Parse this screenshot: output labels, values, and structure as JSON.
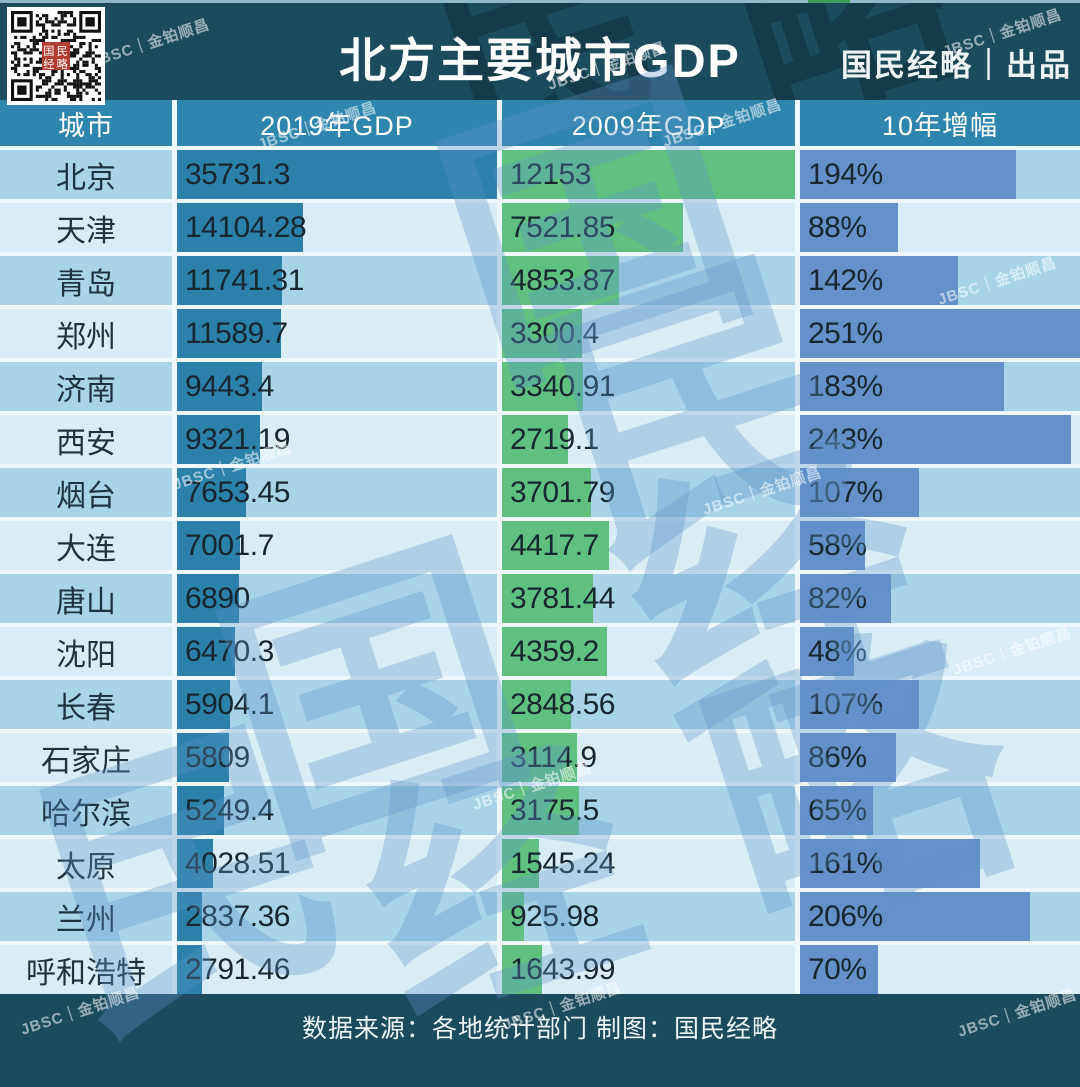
{
  "page": {
    "title": "北方主要城市GDP",
    "byline": "国民经略｜出品",
    "footer": "数据来源：各地统计部门  制图：国民经略"
  },
  "watermarks": {
    "jbsc": "JBSC｜金铂顺昌",
    "chars": [
      "国",
      "民",
      "经",
      "略"
    ],
    "qr_seal": "国民经略"
  },
  "colors": {
    "page_bg": "#1d4b5e",
    "header_bg": "#2e85ae",
    "row_odd": "#a9d4e8",
    "row_even": "#d9edf6",
    "separator": "#eef7fb",
    "bars": {
      "gdp2019": "#2b81aa",
      "gdp2009": "#5fc080",
      "growth": "#6590c9"
    },
    "seal_red": "#b23b32"
  },
  "chart_data": {
    "type": "table",
    "title": "北方主要城市GDP",
    "columns": [
      "城市",
      "2019年GDP",
      "2009年GDP",
      "10年增幅"
    ],
    "bar_note": "每个数值单元格内有与数值成比例的条形，列最大值占满整列宽度",
    "col_max": {
      "gdp2019": 35731.3,
      "gdp2009": 12153,
      "growth": 251
    },
    "rows": [
      {
        "city": "北京",
        "gdp2019": "35731.3",
        "gdp2009": "12153",
        "growth": "194%"
      },
      {
        "city": "天津",
        "gdp2019": "14104.28",
        "gdp2009": "7521.85",
        "growth": "88%"
      },
      {
        "city": "青岛",
        "gdp2019": "11741.31",
        "gdp2009": "4853.87",
        "growth": "142%"
      },
      {
        "city": "郑州",
        "gdp2019": "11589.7",
        "gdp2009": "3300.4",
        "growth": "251%"
      },
      {
        "city": "济南",
        "gdp2019": "9443.4",
        "gdp2009": "3340.91",
        "growth": "183%"
      },
      {
        "city": "西安",
        "gdp2019": "9321.19",
        "gdp2009": "2719.1",
        "growth": "243%"
      },
      {
        "city": "烟台",
        "gdp2019": "7653.45",
        "gdp2009": "3701.79",
        "growth": "107%"
      },
      {
        "city": "大连",
        "gdp2019": "7001.7",
        "gdp2009": "4417.7",
        "growth": "58%"
      },
      {
        "city": "唐山",
        "gdp2019": "6890",
        "gdp2009": "3781.44",
        "growth": "82%"
      },
      {
        "city": "沈阳",
        "gdp2019": "6470.3",
        "gdp2009": "4359.2",
        "growth": "48%"
      },
      {
        "city": "长春",
        "gdp2019": "5904.1",
        "gdp2009": "2848.56",
        "growth": "107%"
      },
      {
        "city": "石家庄",
        "gdp2019": "5809",
        "gdp2009": "3114.9",
        "growth": "86%"
      },
      {
        "city": "哈尔滨",
        "gdp2019": "5249.4",
        "gdp2009": "3175.5",
        "growth": "65%"
      },
      {
        "city": "太原",
        "gdp2019": "4028.51",
        "gdp2009": "1545.24",
        "growth": "161%"
      },
      {
        "city": "兰州",
        "gdp2019": "2837.36",
        "gdp2009": "925.98",
        "growth": "206%"
      },
      {
        "city": "呼和浩特",
        "gdp2019": "2791.46",
        "gdp2009": "1643.99",
        "growth": "70%"
      }
    ]
  }
}
